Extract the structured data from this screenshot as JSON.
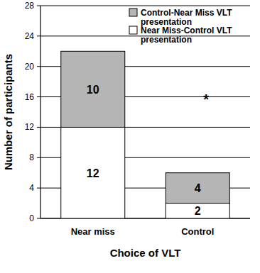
{
  "chart_data": {
    "type": "bar",
    "stacked": true,
    "data_labels": true,
    "grid": true,
    "legend": "upper right",
    "x_label": "Choice of VLT",
    "y_label": "Number of participants",
    "annotation": "*",
    "categories": [
      "Near miss",
      "Control"
    ],
    "series": [
      {
        "name": "Control-Near Miss VLT presentation",
        "color": "#b5b5b5",
        "values": [
          10,
          4
        ]
      },
      {
        "name": "Near Miss-Control VLT presentation",
        "color": "#ffffff",
        "values": [
          12,
          2
        ]
      }
    ],
    "ylim": [
      0,
      28
    ],
    "yticks": [
      0,
      4,
      8,
      12,
      16,
      20,
      24,
      28
    ]
  }
}
